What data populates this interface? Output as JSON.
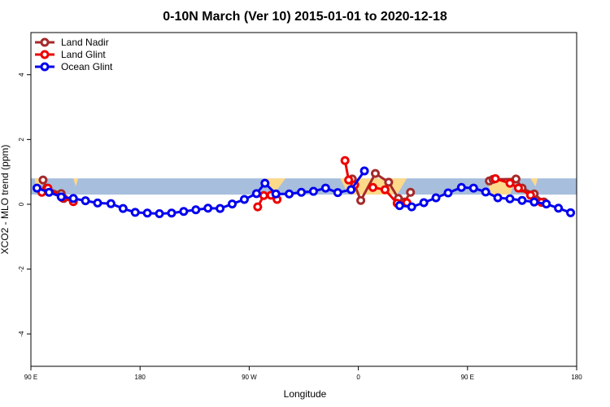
{
  "chart_data": {
    "type": "line",
    "title": "0-10N March (Ver 10)   2015-01-01 to 2020-12-18",
    "xlabel": "Longitude",
    "ylabel": "XCO2 - MLO trend (ppm)",
    "xlim": [
      90,
      540
    ],
    "ylim": [
      -5,
      5.3
    ],
    "x_ticks": [
      {
        "value": 90,
        "label": "90 E"
      },
      {
        "value": 180,
        "label": "180"
      },
      {
        "value": 270,
        "label": "90 W"
      },
      {
        "value": 360,
        "label": "0"
      },
      {
        "value": 450,
        "label": "90 E"
      },
      {
        "value": 540,
        "label": "180"
      }
    ],
    "y_ticks": [
      {
        "value": -4,
        "label": "-4"
      },
      {
        "value": -2,
        "label": "-2"
      },
      {
        "value": 0,
        "label": "0"
      },
      {
        "value": 2,
        "label": "2"
      },
      {
        "value": 4,
        "label": "4"
      }
    ],
    "band": {
      "y_min": 0.3,
      "y_max": 0.8,
      "color": "#a7bedd"
    },
    "land_color": "#fdd98a",
    "land_regions": [
      {
        "points": [
          [
            93,
            0.8
          ],
          [
            96,
            0.3
          ],
          [
            100,
            0.8
          ]
        ]
      },
      {
        "points": [
          [
            125,
            0.8
          ],
          [
            127,
            0.55
          ],
          [
            129,
            0.8
          ]
        ]
      },
      {
        "points": [
          [
            283,
            0.8
          ],
          [
            290,
            0.3
          ],
          [
            300,
            0.8
          ]
        ]
      },
      {
        "points": [
          [
            345,
            0.8
          ],
          [
            352,
            0.3
          ],
          [
            392,
            0.3
          ],
          [
            400,
            0.8
          ]
        ]
      },
      {
        "points": [
          [
            465,
            0.8
          ],
          [
            470,
            0.3
          ],
          [
            485,
            0.3
          ],
          [
            490,
            0.8
          ]
        ]
      },
      {
        "points": [
          [
            502,
            0.8
          ],
          [
            506,
            0.55
          ],
          [
            508,
            0.8
          ]
        ]
      }
    ],
    "legend_position": "top-left",
    "series": [
      {
        "name": "Land Nadir",
        "color": "#a52a2a",
        "segments": [
          [
            [
              100,
              0.75
            ],
            [
              103,
              0.5
            ],
            [
              115,
              0.33
            ],
            [
              117,
              0.18
            ]
          ],
          [
            [
              355,
              0.78
            ],
            [
              362,
              0.12
            ],
            [
              374,
              0.95
            ],
            [
              385,
              0.68
            ],
            [
              393,
              0.18
            ],
            [
              398,
              0.07
            ],
            [
              403,
              0.37
            ]
          ],
          [
            [
              468,
              0.72
            ],
            [
              471,
              0.77
            ],
            [
              490,
              0.78
            ],
            [
              495,
              0.5
            ],
            [
              505,
              0.32
            ],
            [
              513,
              0.07
            ]
          ]
        ]
      },
      {
        "name": "Land Glint",
        "color": "#ee0000",
        "segments": [
          [
            [
              99,
              0.37
            ],
            [
              104,
              0.5
            ],
            [
              116,
              0.2
            ],
            [
              125,
              0.08
            ]
          ],
          [
            [
              277,
              -0.08
            ],
            [
              282,
              0.27
            ],
            [
              288,
              0.28
            ],
            [
              293,
              0.15
            ]
          ],
          [
            [
              349,
              1.35
            ],
            [
              352,
              0.75
            ],
            [
              357,
              0.6
            ]
          ],
          [
            [
              372,
              0.52
            ],
            [
              382,
              0.45
            ],
            [
              392,
              0.03
            ],
            [
              400,
              0.05
            ]
          ],
          [
            [
              473,
              0.79
            ],
            [
              485,
              0.65
            ],
            [
              492,
              0.5
            ],
            [
              502,
              0.28
            ],
            [
              511,
              0.06
            ]
          ]
        ]
      },
      {
        "name": "Ocean Glint",
        "color": "#0000ee",
        "segments": [
          [
            [
              95,
              0.5
            ],
            [
              105,
              0.37
            ],
            [
              115,
              0.23
            ],
            [
              125,
              0.18
            ],
            [
              135,
              0.11
            ],
            [
              145,
              0.04
            ],
            [
              156,
              0.02
            ],
            [
              166,
              -0.13
            ],
            [
              176,
              -0.25
            ],
            [
              186,
              -0.27
            ],
            [
              196,
              -0.29
            ],
            [
              206,
              -0.27
            ],
            [
              216,
              -0.22
            ],
            [
              226,
              -0.17
            ],
            [
              236,
              -0.12
            ],
            [
              246,
              -0.13
            ],
            [
              256,
              0.01
            ],
            [
              266,
              0.15
            ],
            [
              276,
              0.33
            ],
            [
              283,
              0.65
            ],
            [
              292,
              0.32
            ],
            [
              303,
              0.32
            ],
            [
              313,
              0.37
            ],
            [
              323,
              0.4
            ],
            [
              333,
              0.5
            ],
            [
              343,
              0.36
            ],
            [
              354,
              0.45
            ],
            [
              365,
              1.03
            ]
          ],
          [
            [
              394,
              -0.04
            ],
            [
              404,
              -0.08
            ],
            [
              414,
              0.05
            ],
            [
              424,
              0.2
            ],
            [
              434,
              0.35
            ],
            [
              445,
              0.52
            ],
            [
              455,
              0.5
            ],
            [
              465,
              0.38
            ],
            [
              475,
              0.2
            ],
            [
              485,
              0.17
            ],
            [
              495,
              0.12
            ],
            [
              505,
              0.07
            ],
            [
              515,
              0.01
            ],
            [
              525,
              -0.12
            ],
            [
              535,
              -0.26
            ]
          ]
        ]
      }
    ]
  }
}
